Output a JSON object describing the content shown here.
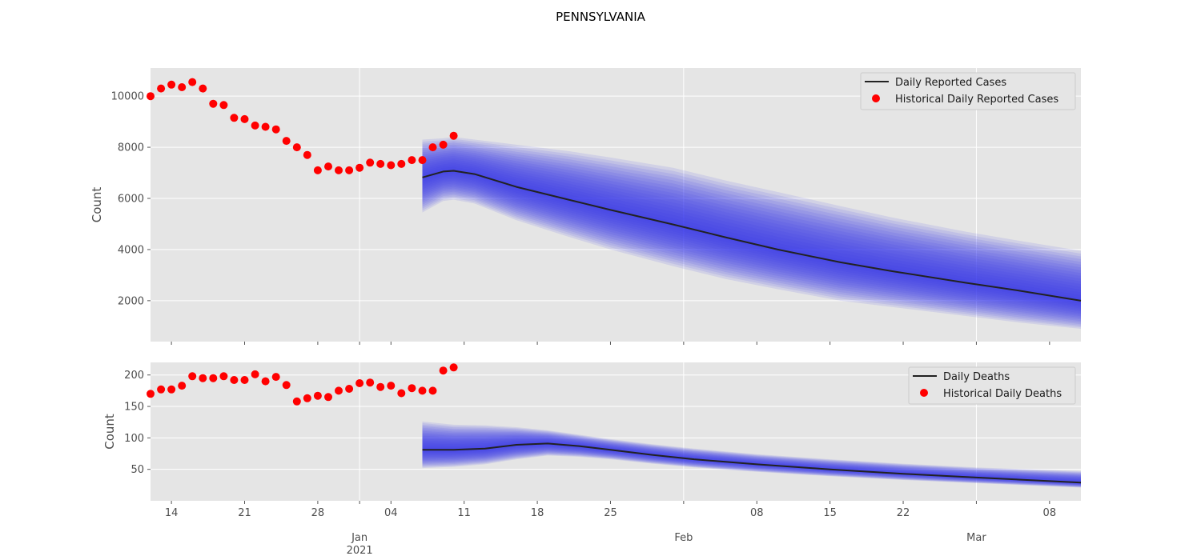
{
  "figure_title": "PENNSYLVANIA",
  "colors": {
    "panel_bg": "#e5e5e5",
    "grid": "#ffffff",
    "forecast_line": "#222222",
    "band": "#3a3af0",
    "historical": "#ff0000"
  },
  "chart_data": [
    {
      "type": "line",
      "title": "",
      "ylabel": "Count",
      "ylim": [
        400,
        11100
      ],
      "yticks": [
        2000,
        4000,
        6000,
        8000,
        10000
      ],
      "grid": true,
      "legend_position": "top-right",
      "series": [
        {
          "name": "Daily Reported Cases",
          "style": "line",
          "points": [
            [
              "2021-01-07",
              6820
            ],
            [
              "2021-01-09",
              7050
            ],
            [
              "2021-01-10",
              7080
            ],
            [
              "2021-01-12",
              6950
            ],
            [
              "2021-01-16",
              6450
            ],
            [
              "2021-01-21",
              5950
            ],
            [
              "2021-01-25",
              5550
            ],
            [
              "2021-01-31",
              4980
            ],
            [
              "2021-02-05",
              4480
            ],
            [
              "2021-02-10",
              4000
            ],
            [
              "2021-02-16",
              3500
            ],
            [
              "2021-02-21",
              3150
            ],
            [
              "2021-02-28",
              2700
            ],
            [
              "2021-03-05",
              2400
            ],
            [
              "2021-03-11",
              2000
            ]
          ],
          "band_lower": [
            [
              "2021-01-07",
              5450
            ],
            [
              "2021-01-09",
              5900
            ],
            [
              "2021-01-10",
              5950
            ],
            [
              "2021-01-12",
              5800
            ],
            [
              "2021-01-16",
              5150
            ],
            [
              "2021-01-21",
              4500
            ],
            [
              "2021-01-25",
              4000
            ],
            [
              "2021-01-31",
              3350
            ],
            [
              "2021-02-05",
              2850
            ],
            [
              "2021-02-10",
              2450
            ],
            [
              "2021-02-16",
              2000
            ],
            [
              "2021-02-21",
              1750
            ],
            [
              "2021-02-28",
              1400
            ],
            [
              "2021-03-05",
              1150
            ],
            [
              "2021-03-11",
              900
            ]
          ],
          "band_upper": [
            [
              "2021-01-07",
              8300
            ],
            [
              "2021-01-09",
              8350
            ],
            [
              "2021-01-10",
              8400
            ],
            [
              "2021-01-12",
              8300
            ],
            [
              "2021-01-16",
              8100
            ],
            [
              "2021-01-21",
              7850
            ],
            [
              "2021-01-25",
              7600
            ],
            [
              "2021-01-31",
              7200
            ],
            [
              "2021-02-05",
              6700
            ],
            [
              "2021-02-10",
              6250
            ],
            [
              "2021-02-16",
              5700
            ],
            [
              "2021-02-21",
              5250
            ],
            [
              "2021-02-28",
              4700
            ],
            [
              "2021-03-05",
              4350
            ],
            [
              "2021-03-11",
              3950
            ]
          ]
        },
        {
          "name": "Historical Daily Reported Cases",
          "style": "scatter",
          "points": [
            [
              "2020-12-12",
              10000
            ],
            [
              "2020-12-13",
              10300
            ],
            [
              "2020-12-14",
              10450
            ],
            [
              "2020-12-15",
              10350
            ],
            [
              "2020-12-16",
              10550
            ],
            [
              "2020-12-17",
              10300
            ],
            [
              "2020-12-18",
              9700
            ],
            [
              "2020-12-19",
              9650
            ],
            [
              "2020-12-20",
              9150
            ],
            [
              "2020-12-21",
              9100
            ],
            [
              "2020-12-22",
              8850
            ],
            [
              "2020-12-23",
              8800
            ],
            [
              "2020-12-24",
              8700
            ],
            [
              "2020-12-25",
              8250
            ],
            [
              "2020-12-26",
              8000
            ],
            [
              "2020-12-27",
              7700
            ],
            [
              "2020-12-28",
              7100
            ],
            [
              "2020-12-29",
              7250
            ],
            [
              "2020-12-30",
              7100
            ],
            [
              "2020-12-31",
              7100
            ],
            [
              "2021-01-01",
              7200
            ],
            [
              "2021-01-02",
              7400
            ],
            [
              "2021-01-03",
              7350
            ],
            [
              "2021-01-04",
              7300
            ],
            [
              "2021-01-05",
              7350
            ],
            [
              "2021-01-06",
              7500
            ],
            [
              "2021-01-07",
              7500
            ],
            [
              "2021-01-08",
              8000
            ],
            [
              "2021-01-09",
              8100
            ],
            [
              "2021-01-10",
              8450
            ]
          ]
        }
      ]
    },
    {
      "type": "line",
      "title": "",
      "ylabel": "Count",
      "ylim": [
        0,
        220
      ],
      "yticks": [
        50,
        100,
        150,
        200
      ],
      "grid": true,
      "legend_position": "top-right",
      "series": [
        {
          "name": "Daily Deaths",
          "style": "line",
          "points": [
            [
              "2021-01-07",
              81
            ],
            [
              "2021-01-10",
              81
            ],
            [
              "2021-01-13",
              83
            ],
            [
              "2021-01-16",
              89
            ],
            [
              "2021-01-19",
              91
            ],
            [
              "2021-01-22",
              87
            ],
            [
              "2021-01-25",
              81
            ],
            [
              "2021-01-29",
              73
            ],
            [
              "2021-02-02",
              66
            ],
            [
              "2021-02-08",
              58
            ],
            [
              "2021-02-15",
              50
            ],
            [
              "2021-02-22",
              43
            ],
            [
              "2021-03-01",
              37
            ],
            [
              "2021-03-11",
              29
            ]
          ],
          "band_lower": [
            [
              "2021-01-07",
              52
            ],
            [
              "2021-01-10",
              54
            ],
            [
              "2021-01-13",
              58
            ],
            [
              "2021-01-16",
              66
            ],
            [
              "2021-01-19",
              72
            ],
            [
              "2021-01-22",
              70
            ],
            [
              "2021-01-25",
              66
            ],
            [
              "2021-01-29",
              59
            ],
            [
              "2021-02-02",
              53
            ],
            [
              "2021-02-08",
              46
            ],
            [
              "2021-02-15",
              39
            ],
            [
              "2021-02-22",
              33
            ],
            [
              "2021-03-01",
              28
            ],
            [
              "2021-03-11",
              21
            ]
          ],
          "band_upper": [
            [
              "2021-01-07",
              126
            ],
            [
              "2021-01-10",
              121
            ],
            [
              "2021-01-13",
              120
            ],
            [
              "2021-01-16",
              117
            ],
            [
              "2021-01-19",
              112
            ],
            [
              "2021-01-22",
              105
            ],
            [
              "2021-01-25",
              98
            ],
            [
              "2021-01-29",
              90
            ],
            [
              "2021-02-02",
              83
            ],
            [
              "2021-02-08",
              74
            ],
            [
              "2021-02-15",
              66
            ],
            [
              "2021-02-22",
              59
            ],
            [
              "2021-03-01",
              53
            ],
            [
              "2021-03-11",
              47
            ]
          ]
        },
        {
          "name": "Historical Daily Deaths",
          "style": "scatter",
          "points": [
            [
              "2020-12-12",
              170
            ],
            [
              "2020-12-13",
              177
            ],
            [
              "2020-12-14",
              177
            ],
            [
              "2020-12-15",
              183
            ],
            [
              "2020-12-16",
              198
            ],
            [
              "2020-12-17",
              195
            ],
            [
              "2020-12-18",
              195
            ],
            [
              "2020-12-19",
              198
            ],
            [
              "2020-12-20",
              192
            ],
            [
              "2020-12-21",
              192
            ],
            [
              "2020-12-22",
              201
            ],
            [
              "2020-12-23",
              190
            ],
            [
              "2020-12-24",
              197
            ],
            [
              "2020-12-25",
              184
            ],
            [
              "2020-12-26",
              158
            ],
            [
              "2020-12-27",
              163
            ],
            [
              "2020-12-28",
              167
            ],
            [
              "2020-12-29",
              165
            ],
            [
              "2020-12-30",
              175
            ],
            [
              "2020-12-31",
              178
            ],
            [
              "2021-01-01",
              187
            ],
            [
              "2021-01-02",
              188
            ],
            [
              "2021-01-03",
              181
            ],
            [
              "2021-01-04",
              183
            ],
            [
              "2021-01-05",
              171
            ],
            [
              "2021-01-06",
              179
            ],
            [
              "2021-01-07",
              175
            ],
            [
              "2021-01-08",
              175
            ],
            [
              "2021-01-09",
              207
            ],
            [
              "2021-01-10",
              212
            ]
          ]
        }
      ]
    }
  ],
  "x_axis": {
    "range": [
      "2020-12-12",
      "2021-03-11"
    ],
    "major_ticks": [
      {
        "date": "2021-01-01",
        "label": "Jan",
        "sublabel": "2021"
      },
      {
        "date": "2021-02-01",
        "label": "Feb",
        "sublabel": ""
      },
      {
        "date": "2021-03-01",
        "label": "Mar",
        "sublabel": ""
      }
    ],
    "minor_ticks": [
      {
        "date": "2020-12-14",
        "label": "14"
      },
      {
        "date": "2020-12-21",
        "label": "21"
      },
      {
        "date": "2020-12-28",
        "label": "28"
      },
      {
        "date": "2021-01-04",
        "label": "04"
      },
      {
        "date": "2021-01-11",
        "label": "11"
      },
      {
        "date": "2021-01-18",
        "label": "18"
      },
      {
        "date": "2021-01-25",
        "label": "25"
      },
      {
        "date": "2021-02-08",
        "label": "08"
      },
      {
        "date": "2021-02-15",
        "label": "15"
      },
      {
        "date": "2021-02-22",
        "label": "22"
      },
      {
        "date": "2021-03-08",
        "label": "08"
      }
    ]
  }
}
